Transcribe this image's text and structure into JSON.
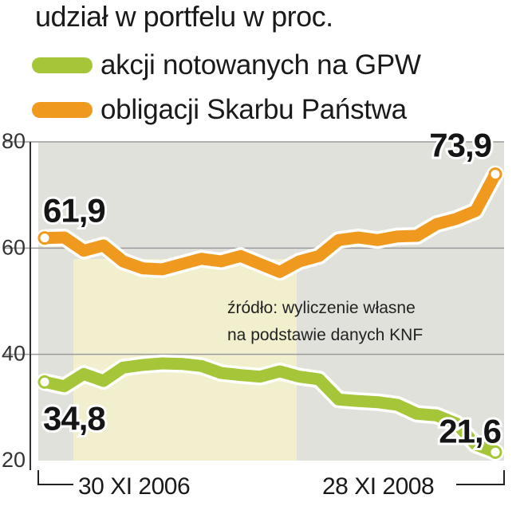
{
  "title": "udział w portfelu w proc.",
  "colors": {
    "green_line": "#a6c63a",
    "orange_line": "#ef9a1f",
    "panel_gray": "#e1e1dc",
    "panel_yellow": "#f1efcd",
    "grid": "#9a9a9a"
  },
  "legend": [
    {
      "label": "akcji notowanych na GPW",
      "color": "#a6c63a"
    },
    {
      "label": "obligacji Skarbu Państwa",
      "color": "#ef9a1f"
    }
  ],
  "source": {
    "line1": "źródło: wyliczenie własne",
    "line2": "na podstawie danych KNF"
  },
  "chart_data": {
    "type": "line",
    "ylim": [
      20,
      80
    ],
    "yticks": [
      20,
      40,
      60,
      80
    ],
    "grid": true,
    "x_tick_labels": [
      "30 XI 2006",
      "28 XI 2008"
    ],
    "series": [
      {
        "name": "akcji notowanych na GPW",
        "color": "#a6c63a",
        "start_label": "34,8",
        "end_label": "21,6",
        "values": [
          34.8,
          34.0,
          36.3,
          35.0,
          37.5,
          38.0,
          38.3,
          38.2,
          37.8,
          36.5,
          36.1,
          35.8,
          36.8,
          35.8,
          35.3,
          31.5,
          31.2,
          31.0,
          30.5,
          28.8,
          28.5,
          27.0,
          23.0,
          21.6
        ]
      },
      {
        "name": "obligacji Skarbu Państwa",
        "color": "#ef9a1f",
        "start_label": "61,9",
        "end_label": "73,9",
        "values": [
          61.9,
          62.0,
          59.5,
          60.5,
          57.5,
          56.2,
          56.0,
          57.0,
          58.0,
          57.5,
          58.5,
          57.0,
          55.5,
          57.5,
          58.5,
          61.5,
          62.0,
          61.5,
          62.2,
          62.3,
          64.5,
          65.5,
          67.0,
          73.9
        ]
      }
    ]
  }
}
